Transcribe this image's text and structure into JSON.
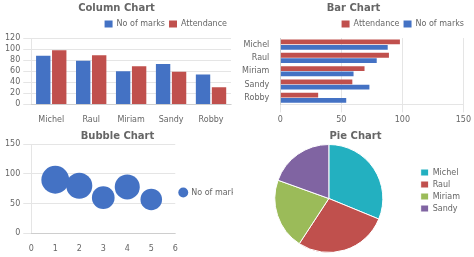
{
  "chart_data": [
    {
      "type": "bar",
      "title": "Column Chart",
      "categories": [
        "Michel",
        "Raul",
        "Miriam",
        "Sandy",
        "Robby"
      ],
      "series": [
        {
          "name": "No of marks",
          "color": "#4472c4",
          "values": [
            88,
            79,
            60,
            73,
            54
          ]
        },
        {
          "name": "Attendance",
          "color": "#c0504d",
          "values": [
            98,
            89,
            69,
            59,
            31
          ]
        }
      ],
      "ylim": [
        0,
        120
      ],
      "yticks": [
        0,
        20,
        40,
        60,
        80,
        100,
        120
      ],
      "grid": true,
      "legend": "upper right"
    },
    {
      "type": "bar",
      "orientation": "horizontal",
      "title": "Bar Chart",
      "categories": [
        "Michel",
        "Raul",
        "Miriam",
        "Sandy",
        "Robby"
      ],
      "series": [
        {
          "name": "Attendance",
          "color": "#c0504d",
          "values": [
            98,
            89,
            69,
            59,
            31
          ]
        },
        {
          "name": "No of marks",
          "color": "#4472c4",
          "values": [
            88,
            79,
            60,
            73,
            54
          ]
        }
      ],
      "xlim": [
        0,
        150
      ],
      "xticks": [
        0,
        50,
        100,
        150
      ],
      "grid": true,
      "legend": "upper right"
    },
    {
      "type": "bubble",
      "title": "Bubble Chart",
      "series": [
        {
          "name": "No of marks",
          "color": "#4472c4",
          "x": [
            1,
            2,
            3,
            4,
            5
          ],
          "values": [
            90,
            80,
            60,
            78,
            57
          ],
          "sizes": [
            90,
            79,
            60,
            73,
            54
          ]
        }
      ],
      "xlim": [
        0,
        6
      ],
      "xticks": [
        0,
        1,
        2,
        3,
        4,
        5,
        6
      ],
      "ylim": [
        0,
        150
      ],
      "yticks": [
        0,
        50,
        100,
        150
      ],
      "grid": true,
      "legend": "center right"
    },
    {
      "type": "pie",
      "title": "Pie Chart",
      "categories": [
        "Michel",
        "Raul",
        "Miriam",
        "Sandy"
      ],
      "values": [
        88,
        79,
        60,
        55
      ],
      "colors": [
        "#23b0c0",
        "#c0504d",
        "#9bbb59",
        "#8064a2"
      ],
      "legend": "right"
    }
  ]
}
